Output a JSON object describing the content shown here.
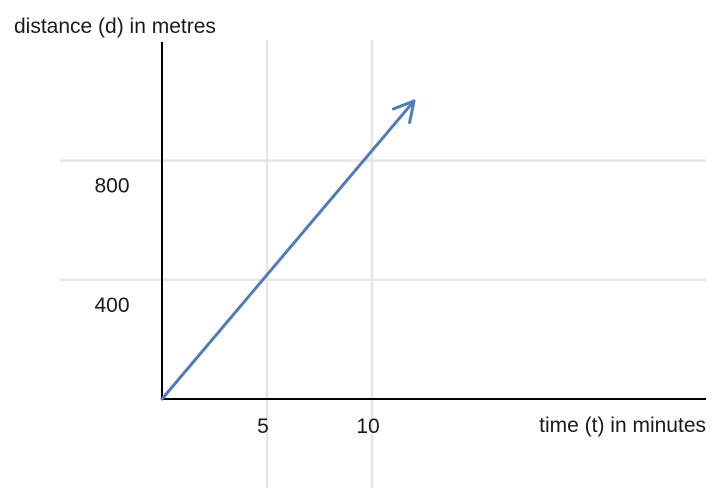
{
  "chart_data": {
    "type": "line",
    "ylabel": "distance (d) in metres",
    "xlabel": "time (t) in minutes",
    "x_ticks": [
      5,
      10
    ],
    "y_ticks": [
      400,
      800
    ],
    "x_tick_labels": [
      "5",
      "10"
    ],
    "y_tick_labels": [
      "400",
      "800"
    ],
    "xlim": [
      0,
      25
    ],
    "ylim": [
      0,
      1150
    ],
    "grid": true,
    "series": [
      {
        "x": [
          0,
          12
        ],
        "y": [
          0,
          1000
        ],
        "arrow_end": true,
        "color": "#4f7bb8"
      }
    ]
  },
  "colors": {
    "grid": "#e6e6e6",
    "axis": "#000000",
    "text": "#1a1a1a"
  }
}
